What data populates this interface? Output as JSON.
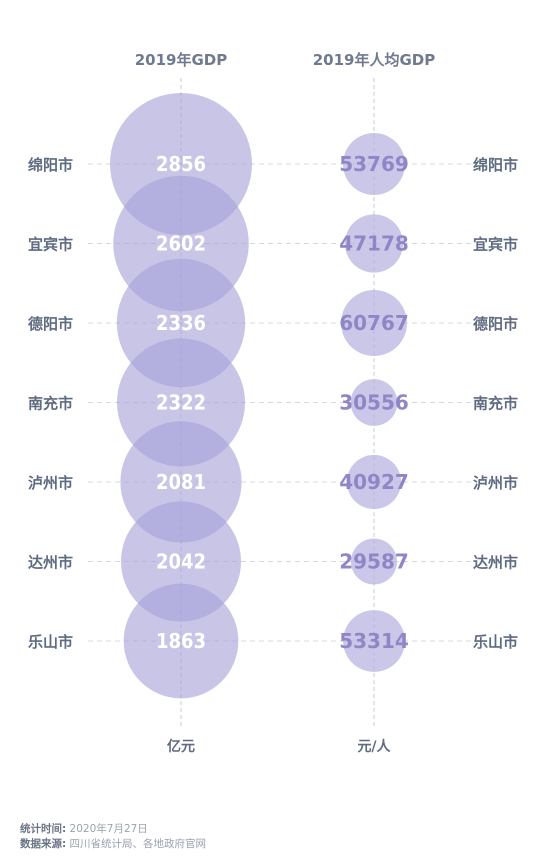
{
  "chart_data": [
    {
      "type": "bubble",
      "title": "2019年GDP",
      "unit": "亿元",
      "categories": [
        "绵阳市",
        "宜宾市",
        "德阳市",
        "南充市",
        "泸州市",
        "达州市",
        "乐山市"
      ],
      "values": [
        2856,
        2602,
        2336,
        2322,
        2081,
        2042,
        1863
      ]
    },
    {
      "type": "bubble",
      "title": "2019年人均GDP",
      "unit": "元/人",
      "categories": [
        "绵阳市",
        "宜宾市",
        "德阳市",
        "南充市",
        "泸州市",
        "达州市",
        "乐山市"
      ],
      "values": [
        53769,
        47178,
        60767,
        30556,
        40927,
        29587,
        53314
      ]
    }
  ],
  "colors": {
    "bubble": "#a7a2d9",
    "bubble_small": "#b9b4e2",
    "text_small": "#8f86c6",
    "label": "#5e6b80"
  },
  "footer": {
    "time_label": "统计时间:",
    "time_value": "2020年7月27日",
    "source_label": "数据来源:",
    "source_value": "四川省统计局、各地政府官网"
  }
}
